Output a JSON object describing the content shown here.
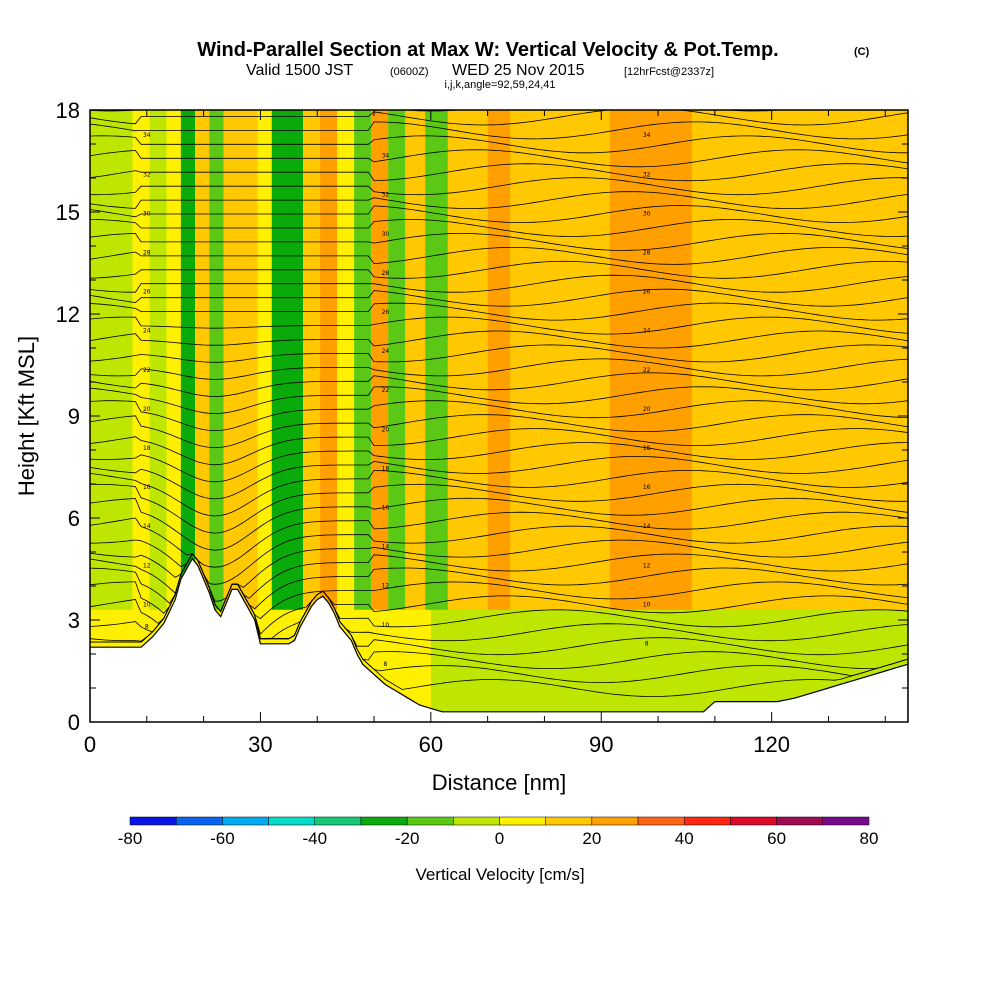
{
  "title": {
    "main": "Wind-Parallel Section at Max W: Vertical Velocity & Pot.Temp.",
    "main_tag": "(C)",
    "valid_prefix": "Valid 1500 JST",
    "valid_zulu": "(0600Z)",
    "valid_date": "WED 25 Nov 2015",
    "fcst": "[12hrFcst@2337z]",
    "params": "i,j,k,angle=92,59,24,41"
  },
  "chart_data": {
    "type": "heatmap",
    "xlabel": "Distance [nm]",
    "ylabel": "Height [Kft MSL]",
    "xlim": [
      0,
      144
    ],
    "ylim": [
      0,
      18
    ],
    "xticks": [
      0,
      30,
      60,
      90,
      120
    ],
    "yticks": [
      0,
      3,
      6,
      9,
      12,
      15,
      18
    ],
    "colorbar": {
      "label": "Vertical Velocity [cm/s]",
      "tick_labels": [
        "-80",
        "-60",
        "-40",
        "-20",
        "0",
        "20",
        "40",
        "60",
        "80"
      ],
      "levels": [
        -80,
        -70,
        -60,
        -50,
        -40,
        -30,
        -20,
        -10,
        0,
        10,
        20,
        30,
        40,
        50,
        60,
        70,
        80
      ],
      "colors": [
        "#0a14e6",
        "#0a64f0",
        "#00aaf0",
        "#00dcc8",
        "#14c878",
        "#0aaa0a",
        "#5ac814",
        "#bee600",
        "#fff000",
        "#ffc800",
        "#ffa000",
        "#ff6414",
        "#ff2814",
        "#dc0a28",
        "#a00a50",
        "#780a8c"
      ]
    },
    "terrain_profile": {
      "distance": [
        0,
        2,
        4,
        7,
        9,
        11,
        13,
        15,
        16,
        18,
        19,
        20,
        21,
        22,
        23,
        25,
        26,
        28,
        29,
        30,
        31,
        32,
        33,
        35,
        36,
        37,
        38,
        39,
        40,
        41,
        42,
        43,
        44,
        45,
        46,
        47,
        48,
        50,
        52,
        54,
        56,
        58,
        60,
        62,
        64,
        70,
        80,
        90,
        100,
        108,
        110,
        115,
        118,
        121,
        124,
        126,
        128,
        130,
        132,
        134,
        136,
        138,
        140,
        142,
        144
      ],
      "height_kft": [
        2.2,
        2.2,
        2.2,
        2.2,
        2.2,
        2.5,
        2.9,
        3.6,
        4.2,
        4.8,
        4.6,
        4.2,
        3.8,
        3.3,
        3.1,
        3.9,
        3.9,
        3.3,
        3.0,
        2.3,
        2.3,
        2.3,
        2.3,
        2.3,
        2.4,
        2.8,
        3.1,
        3.4,
        3.6,
        3.7,
        3.5,
        3.2,
        2.8,
        2.6,
        2.4,
        2.0,
        1.7,
        1.4,
        1.1,
        0.9,
        0.7,
        0.5,
        0.4,
        0.3,
        0.3,
        0.3,
        0.3,
        0.3,
        0.3,
        0.3,
        0.6,
        0.6,
        0.6,
        0.6,
        0.7,
        0.8,
        0.9,
        1.0,
        1.1,
        1.2,
        1.3,
        1.4,
        1.5,
        1.6,
        1.7
      ]
    },
    "theta_contour_labels": [
      "34",
      "32",
      "30",
      "28",
      "26",
      "24",
      "22",
      "20",
      "18",
      "16",
      "14",
      "12",
      "10",
      "8"
    ],
    "w_columns": [
      {
        "distance": 3,
        "w": -3
      },
      {
        "distance": 6,
        "w": -8
      },
      {
        "distance": 9,
        "w": 4
      },
      {
        "distance": 12,
        "w": -10
      },
      {
        "distance": 15,
        "w": 8
      },
      {
        "distance": 17,
        "w": -25
      },
      {
        "distance": 20,
        "w": 15
      },
      {
        "distance": 22,
        "w": -15
      },
      {
        "distance": 25,
        "w": 12
      },
      {
        "distance": 28,
        "w": 18
      },
      {
        "distance": 31,
        "w": 6
      },
      {
        "distance": 33,
        "w": -22
      },
      {
        "distance": 36,
        "w": -30
      },
      {
        "distance": 39,
        "w": 14
      },
      {
        "distance": 42,
        "w": 20
      },
      {
        "distance": 45,
        "w": 8
      },
      {
        "distance": 48,
        "w": -18
      },
      {
        "distance": 51,
        "w": 22
      },
      {
        "distance": 54,
        "w": -12
      },
      {
        "distance": 57,
        "w": 10
      },
      {
        "distance": 61,
        "w": -14
      },
      {
        "distance": 65,
        "w": 12
      },
      {
        "distance": 68,
        "w": 18
      },
      {
        "distance": 72,
        "w": 22
      },
      {
        "distance": 76,
        "w": 15
      },
      {
        "distance": 82,
        "w": 12
      },
      {
        "distance": 88,
        "w": 16
      },
      {
        "distance": 95,
        "w": 22
      },
      {
        "distance": 102,
        "w": 20
      },
      {
        "distance": 110,
        "w": 12
      },
      {
        "distance": 118,
        "w": 10
      },
      {
        "distance": 126,
        "w": 12
      },
      {
        "distance": 134,
        "w": 10
      },
      {
        "distance": 141,
        "w": 12
      }
    ],
    "low_level_w": -3,
    "grid": false,
    "legend": "colorbar-bottom"
  }
}
